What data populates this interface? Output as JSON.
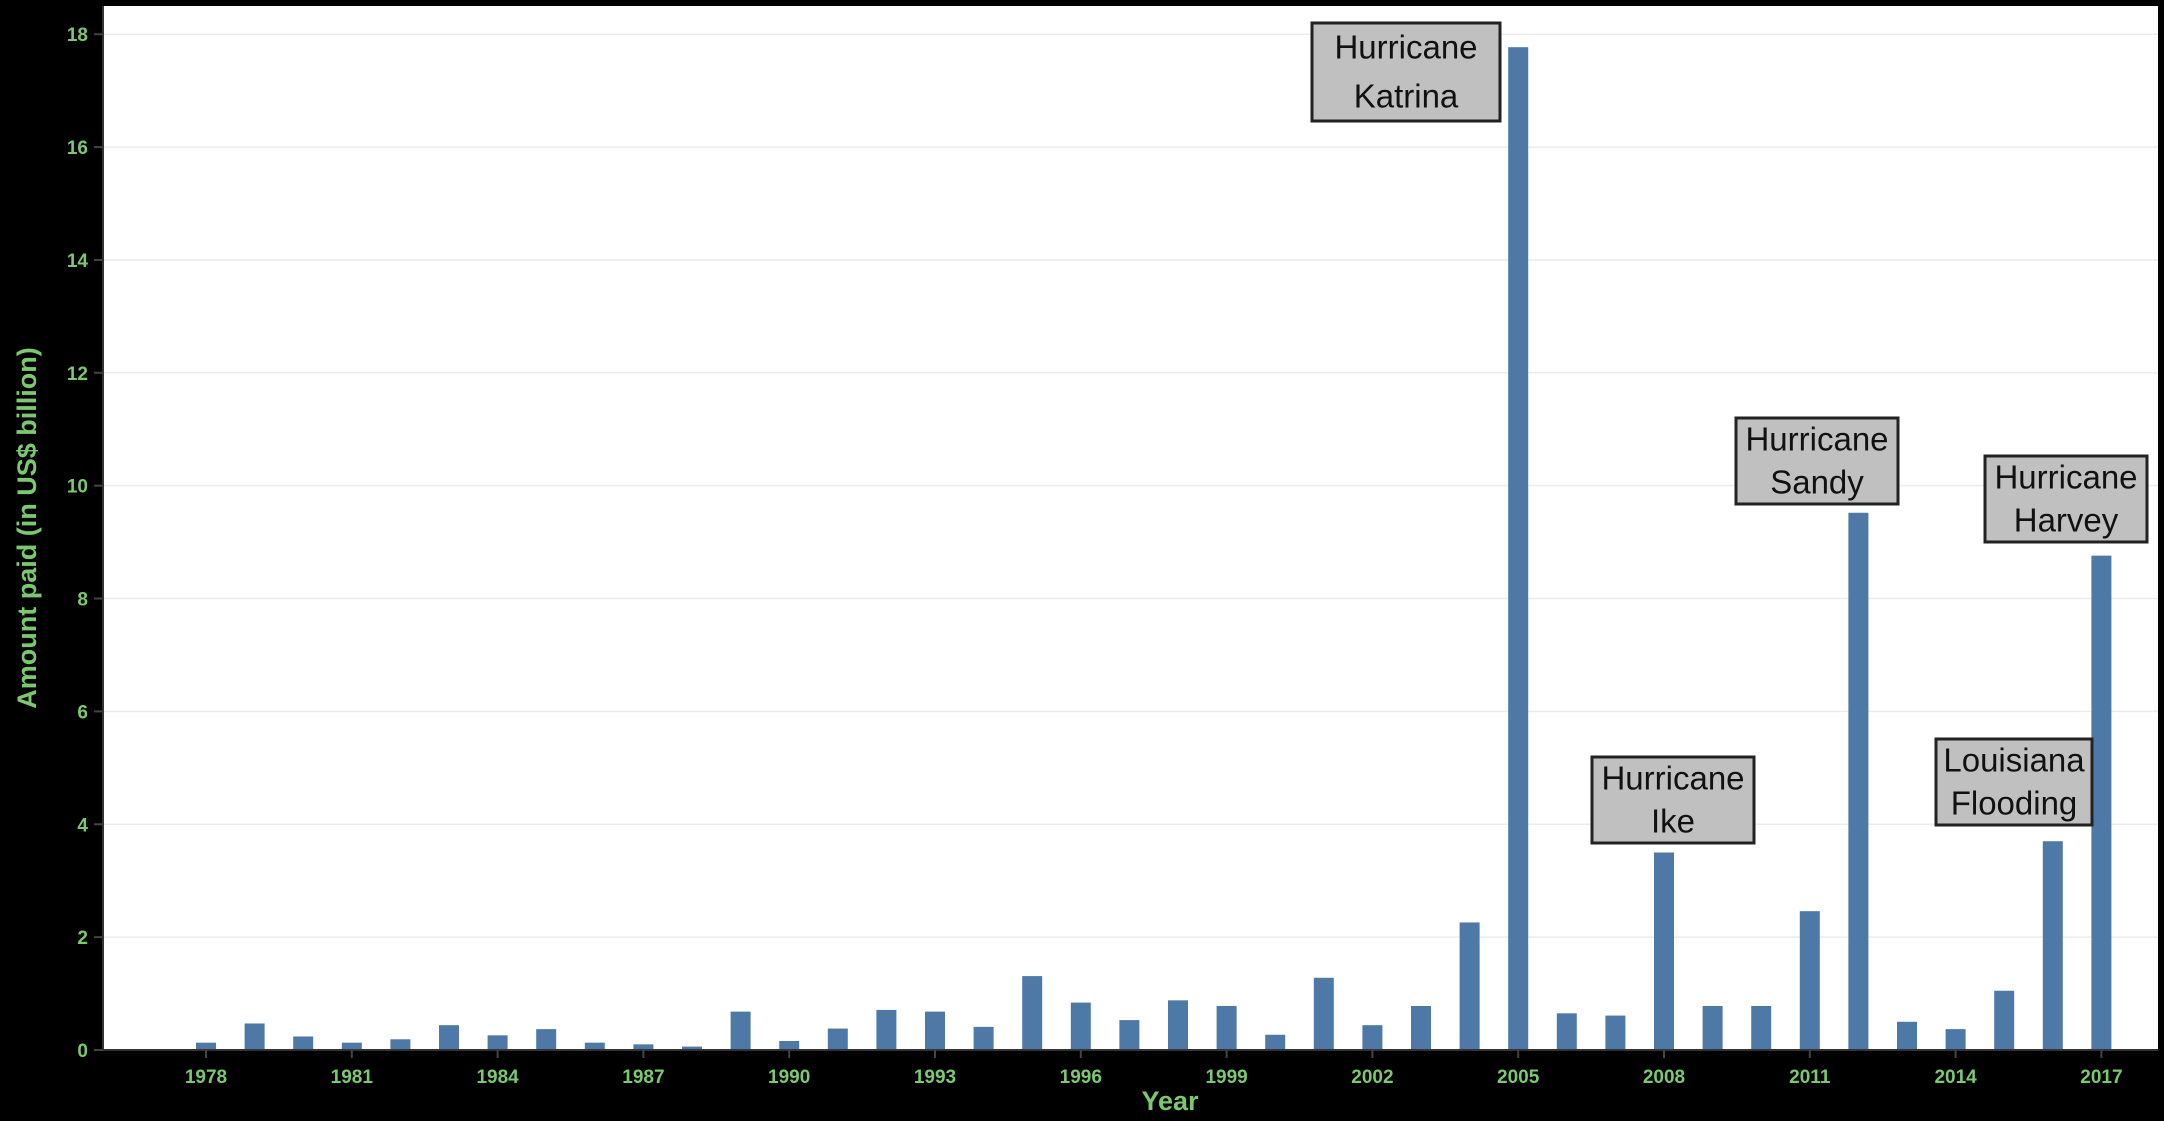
{
  "colors": {
    "background": "#000000",
    "plot_background": "#ffffff",
    "bar": "#4e79a7",
    "axis_text": "#7bc96f",
    "gridline": "#ececec",
    "annotation_fill": "#c0c0c0",
    "annotation_border": "#222222"
  },
  "chart_data": {
    "type": "bar",
    "title": "",
    "xlabel": "Year",
    "ylabel": "Amount paid (in US$ billion)",
    "ylim": [
      0,
      18.5
    ],
    "yticks": [
      0,
      2,
      4,
      6,
      8,
      10,
      12,
      14,
      16,
      18
    ],
    "xticks": [
      1978,
      1981,
      1984,
      1987,
      1990,
      1993,
      1996,
      1999,
      2002,
      2005,
      2008,
      2011,
      2014,
      2017
    ],
    "grid": true,
    "categories": [
      1978,
      1979,
      1980,
      1981,
      1982,
      1983,
      1984,
      1985,
      1986,
      1987,
      1988,
      1989,
      1990,
      1991,
      1992,
      1993,
      1994,
      1995,
      1996,
      1997,
      1998,
      1999,
      2000,
      2001,
      2002,
      2003,
      2004,
      2005,
      2006,
      2007,
      2008,
      2009,
      2010,
      2011,
      2012,
      2013,
      2014,
      2015,
      2016,
      2017
    ],
    "values": [
      0.13,
      0.47,
      0.24,
      0.13,
      0.19,
      0.44,
      0.26,
      0.37,
      0.13,
      0.1,
      0.06,
      0.68,
      0.16,
      0.38,
      0.71,
      0.68,
      0.41,
      1.31,
      0.84,
      0.53,
      0.88,
      0.78,
      0.27,
      1.28,
      0.44,
      0.78,
      2.26,
      17.77,
      0.65,
      0.61,
      3.5,
      0.78,
      0.78,
      2.46,
      9.52,
      0.5,
      0.37,
      1.05,
      3.7,
      8.76
    ],
    "annotations": [
      {
        "year": 2005,
        "lines": [
          "Hurricane",
          "Katrina"
        ]
      },
      {
        "year": 2008,
        "lines": [
          "Hurricane",
          "Ike"
        ]
      },
      {
        "year": 2012,
        "lines": [
          "Hurricane",
          "Sandy"
        ]
      },
      {
        "year": 2016,
        "lines": [
          "Louisiana",
          "Flooding"
        ]
      },
      {
        "year": 2017,
        "lines": [
          "Hurricane",
          "Harvey"
        ]
      }
    ]
  }
}
